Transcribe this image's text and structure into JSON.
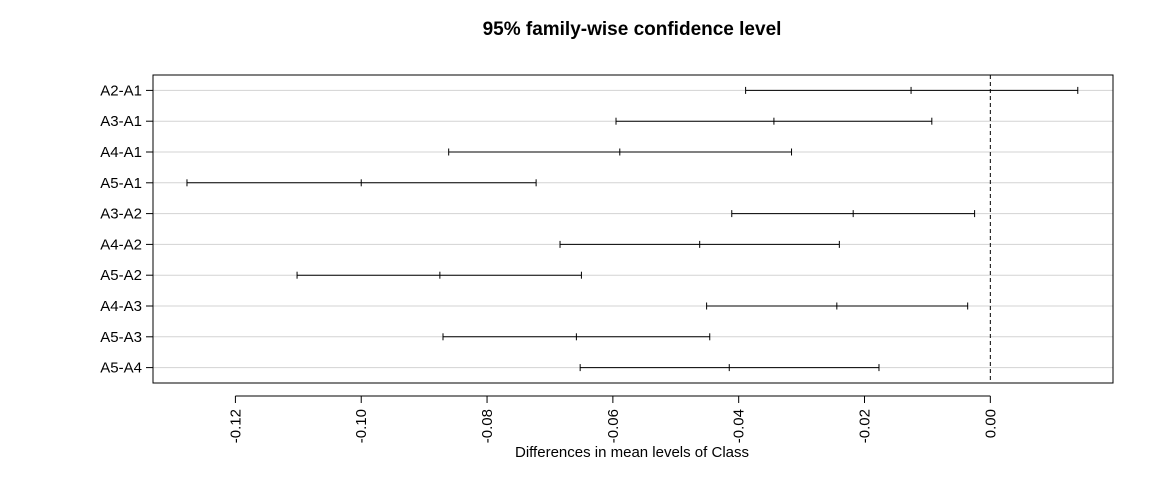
{
  "chart_data": {
    "type": "interval",
    "title": "95% family-wise confidence level",
    "xlabel": "Differences in mean levels of Class",
    "ylabel": "",
    "xlim": [
      -0.1331,
      0.0195
    ],
    "xticks": [
      -0.12,
      -0.1,
      -0.08,
      -0.06,
      -0.04,
      -0.02,
      0.0
    ],
    "xtick_labels": [
      "-0.12",
      "-0.10",
      "-0.08",
      "-0.06",
      "-0.04",
      "-0.02",
      "0.00"
    ],
    "reference_line": 0.0,
    "grid": "horizontal",
    "colors": {
      "line": "#000000",
      "grid": "#d3d3d3",
      "background": "#ffffff"
    },
    "comparisons": [
      {
        "label": "A2-A1",
        "lwr": -0.0389,
        "diff": -0.0126,
        "upr": 0.0139
      },
      {
        "label": "A3-A1",
        "lwr": -0.0595,
        "diff": -0.0344,
        "upr": -0.0093
      },
      {
        "label": "A4-A1",
        "lwr": -0.0861,
        "diff": -0.0589,
        "upr": -0.0316
      },
      {
        "label": "A5-A1",
        "lwr": -0.1277,
        "diff": -0.1,
        "upr": -0.0722
      },
      {
        "label": "A3-A2",
        "lwr": -0.0411,
        "diff": -0.0218,
        "upr": -0.0025
      },
      {
        "label": "A4-A2",
        "lwr": -0.0684,
        "diff": -0.0462,
        "upr": -0.024
      },
      {
        "label": "A5-A2",
        "lwr": -0.1102,
        "diff": -0.0875,
        "upr": -0.065
      },
      {
        "label": "A4-A3",
        "lwr": -0.0451,
        "diff": -0.0244,
        "upr": -0.0036
      },
      {
        "label": "A5-A3",
        "lwr": -0.087,
        "diff": -0.0658,
        "upr": -0.0446
      },
      {
        "label": "A5-A4",
        "lwr": -0.0652,
        "diff": -0.0415,
        "upr": -0.0177
      }
    ]
  }
}
